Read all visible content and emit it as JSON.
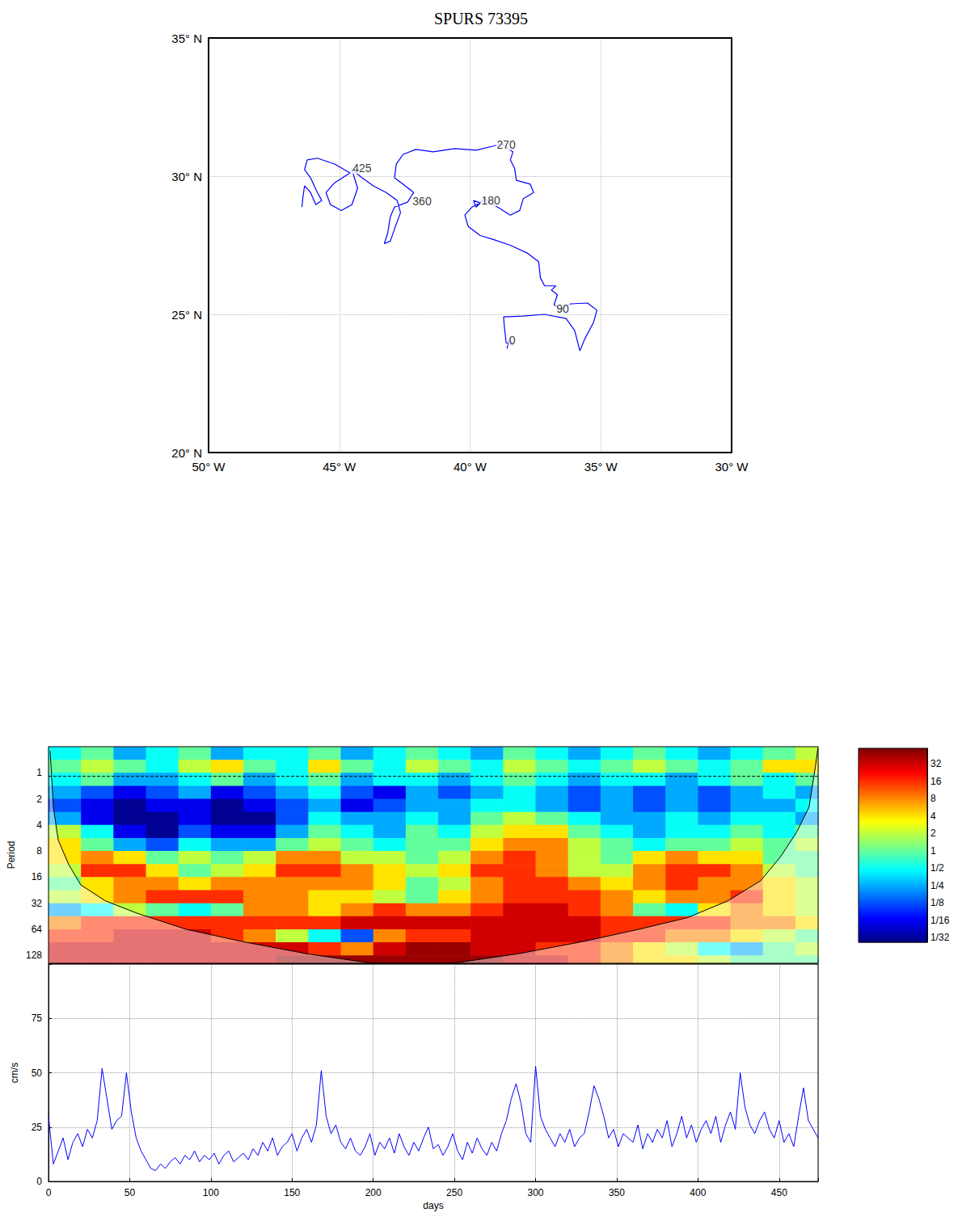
{
  "chart_data": [
    {
      "type": "line",
      "title": "SPURS 73395",
      "xlim": [
        -50,
        -30
      ],
      "xticks": [
        {
          "value": -50,
          "label": "50° W"
        },
        {
          "value": -45,
          "label": "45° W"
        },
        {
          "value": -40,
          "label": "40° W"
        },
        {
          "value": -35,
          "label": "35° W"
        },
        {
          "value": -30,
          "label": "30° W"
        }
      ],
      "ylim": [
        20,
        35
      ],
      "yticks": [
        {
          "value": 20,
          "label": "20° N"
        },
        {
          "value": 25,
          "label": "25° N"
        },
        {
          "value": 30,
          "label": "30° N"
        },
        {
          "value": 35,
          "label": "35° N"
        }
      ],
      "grid": true,
      "color": "#0000ff",
      "x": [
        -38.59,
        -38.49,
        -38.36,
        -38.62,
        -38.69,
        -38.72,
        -37.97,
        -37.15,
        -36.33,
        -36.0,
        -35.8,
        -35.61,
        -35.28,
        -35.15,
        -35.51,
        -36.16,
        -36.52,
        -36.79,
        -36.66,
        -36.89,
        -36.72,
        -37.15,
        -37.31,
        -37.38,
        -37.8,
        -38.46,
        -39.11,
        -39.61,
        -40.07,
        -40.2,
        -39.93,
        -39.61,
        -39.87,
        -39.77,
        -39.44,
        -38.95,
        -38.46,
        -38.1,
        -37.97,
        -37.57,
        -37.7,
        -38.23,
        -38.3,
        -38.46,
        -38.36,
        -38.79,
        -39.11,
        -39.77,
        -40.59,
        -41.41,
        -42.07,
        -42.56,
        -42.82,
        -42.89,
        -42.56,
        -42.16,
        -42.39,
        -42.89,
        -43.05,
        -43.15,
        -43.28,
        -43.05,
        -42.89,
        -42.66,
        -42.79,
        -43.21,
        -43.7,
        -44.13,
        -44.52,
        -44.3,
        -44.52,
        -44.92,
        -45.34,
        -45.51,
        -45.18,
        -44.59,
        -45.18,
        -45.84,
        -46.23,
        -46.33,
        -46.1,
        -45.84,
        -45.67,
        -45.9,
        -46.1,
        -46.33,
        -46.39,
        -46.43
      ],
      "values": [
        23.76,
        24.12,
        23.88,
        23.97,
        24.56,
        24.91,
        24.94,
        25.0,
        24.85,
        24.41,
        23.68,
        24.12,
        24.71,
        25.15,
        25.41,
        25.38,
        25.18,
        25.35,
        25.71,
        25.88,
        26.03,
        26.03,
        26.32,
        26.91,
        27.21,
        27.5,
        27.71,
        27.85,
        28.18,
        28.59,
        28.88,
        29.03,
        29.12,
        28.88,
        29.18,
        28.88,
        28.59,
        28.76,
        29.18,
        29.41,
        29.71,
        29.85,
        30.29,
        30.59,
        30.88,
        31.18,
        31.09,
        30.94,
        31.0,
        30.88,
        30.97,
        30.79,
        30.44,
        29.94,
        29.71,
        29.41,
        29.06,
        28.88,
        28.53,
        27.94,
        27.56,
        27.65,
        28.09,
        28.68,
        29.12,
        29.41,
        29.65,
        29.94,
        30.24,
        29.56,
        28.97,
        28.76,
        28.97,
        29.41,
        29.76,
        30.12,
        30.44,
        30.65,
        30.59,
        30.24,
        29.94,
        29.41,
        29.12,
        28.97,
        29.41,
        29.65,
        29.26,
        28.88
      ],
      "annotations": [
        {
          "text": "0",
          "x": -38.39,
          "y": 24.06
        },
        {
          "text": "90",
          "x": -36.46,
          "y": 25.21
        },
        {
          "text": "180",
          "x": -39.21,
          "y": 29.12
        },
        {
          "text": "270",
          "x": -38.62,
          "y": 31.15
        },
        {
          "text": "360",
          "x": -41.84,
          "y": 29.09
        },
        {
          "text": "425",
          "x": -44.13,
          "y": 30.29
        }
      ]
    },
    {
      "type": "heatmap",
      "ylabel": "Period",
      "xlim": [
        0,
        474
      ],
      "xticks": [
        0,
        50,
        100,
        150,
        200,
        250,
        300,
        350,
        400,
        450
      ],
      "ylim": [
        0.5,
        158
      ],
      "yticks": [
        1,
        2,
        4,
        8,
        16,
        32,
        64,
        128
      ],
      "log": "y",
      "grid": true,
      "tick_labels": "y",
      "x_edges": [
        0,
        20,
        40,
        60,
        80,
        100,
        120,
        140,
        160,
        180,
        200,
        220,
        240,
        260,
        280,
        300,
        320,
        340,
        360,
        380,
        400,
        420,
        440,
        460,
        474
      ],
      "y_edges": [
        0.5,
        0.707,
        1,
        1.414,
        2,
        2.83,
        4,
        5.66,
        8,
        11.3,
        16,
        22.6,
        32,
        45.3,
        64,
        90.5,
        128,
        158
      ],
      "power": [
        [
          0.5,
          1,
          0.25,
          0.5,
          1,
          0.25,
          0.5,
          0.5,
          1,
          0.25,
          0.5,
          1,
          0.5,
          0.25,
          1,
          0.5,
          0.25,
          0.5,
          1,
          0.5,
          0.25,
          0.5,
          1,
          2
        ],
        [
          1,
          2,
          1,
          0.5,
          2,
          4,
          1,
          0.5,
          4,
          1,
          0.5,
          2,
          1,
          0.5,
          2,
          1,
          0.5,
          1,
          2,
          1,
          0.5,
          1,
          4,
          4
        ],
        [
          0.5,
          1,
          0.25,
          0.25,
          0.5,
          1,
          0.25,
          0.5,
          1,
          0.25,
          0.5,
          0.5,
          0.25,
          0.5,
          1,
          0.5,
          0.25,
          0.5,
          0.5,
          0.25,
          0.5,
          1,
          0.5,
          1
        ],
        [
          0.25,
          0.125,
          0.06,
          0.125,
          0.25,
          0.06,
          0.125,
          0.25,
          0.5,
          0.125,
          0.06,
          0.25,
          0.125,
          0.25,
          0.5,
          0.25,
          0.125,
          0.25,
          0.125,
          0.25,
          0.125,
          0.25,
          0.5,
          0.25
        ],
        [
          0.125,
          0.06,
          0.03,
          0.06,
          0.06,
          0.03,
          0.06,
          0.125,
          0.25,
          0.06,
          0.125,
          0.25,
          0.25,
          0.5,
          0.5,
          0.25,
          0.125,
          0.25,
          0.125,
          0.25,
          0.125,
          0.25,
          0.25,
          0.5
        ],
        [
          0.25,
          0.06,
          0.03,
          0.03,
          0.06,
          0.03,
          0.03,
          0.125,
          0.5,
          0.25,
          0.25,
          0.5,
          0.25,
          1,
          2,
          1,
          0.5,
          0.25,
          0.25,
          0.5,
          0.25,
          0.5,
          0.5,
          0.25
        ],
        [
          2,
          0.5,
          0.06,
          0.03,
          0.125,
          0.06,
          0.06,
          0.25,
          1,
          0.5,
          0.25,
          1,
          0.5,
          2,
          4,
          4,
          1,
          0.5,
          0.25,
          0.5,
          0.5,
          1,
          0.5,
          1
        ],
        [
          4,
          1,
          0.25,
          0.125,
          0.5,
          0.25,
          0.25,
          1,
          2,
          1,
          0.5,
          1,
          1,
          4,
          8,
          8,
          2,
          1,
          0.5,
          1,
          1,
          2,
          1,
          2
        ],
        [
          4,
          8,
          4,
          1,
          2,
          1,
          2,
          8,
          8,
          2,
          2,
          1,
          2,
          8,
          16,
          8,
          2,
          1,
          4,
          8,
          4,
          4,
          1,
          1
        ],
        [
          2,
          16,
          16,
          4,
          1,
          2,
          4,
          16,
          16,
          8,
          4,
          2,
          4,
          16,
          16,
          8,
          2,
          2,
          8,
          16,
          16,
          8,
          2,
          1
        ],
        [
          1,
          4,
          8,
          8,
          4,
          8,
          8,
          8,
          8,
          8,
          4,
          1,
          2,
          8,
          16,
          16,
          8,
          4,
          8,
          16,
          8,
          8,
          4,
          2
        ],
        [
          2,
          4,
          8,
          16,
          16,
          16,
          8,
          8,
          4,
          4,
          2,
          1,
          4,
          8,
          16,
          16,
          16,
          8,
          4,
          8,
          8,
          16,
          4,
          2
        ],
        [
          0.25,
          0.5,
          2,
          1,
          0.5,
          1,
          8,
          8,
          4,
          8,
          16,
          8,
          8,
          16,
          32,
          32,
          16,
          8,
          1,
          0.5,
          4,
          8,
          4,
          2
        ],
        [
          8,
          16,
          16,
          16,
          16,
          16,
          16,
          16,
          16,
          32,
          32,
          32,
          32,
          32,
          32,
          32,
          32,
          16,
          16,
          16,
          16,
          8,
          8,
          4
        ],
        [
          16,
          16,
          32,
          32,
          32,
          16,
          8,
          2,
          0.5,
          0.125,
          8,
          16,
          16,
          32,
          32,
          32,
          32,
          16,
          16,
          8,
          8,
          4,
          2,
          1
        ],
        [
          32,
          32,
          32,
          32,
          32,
          32,
          32,
          32,
          16,
          8,
          32,
          48,
          48,
          32,
          32,
          16,
          16,
          8,
          4,
          2,
          0.5,
          0.25,
          1,
          2
        ],
        [
          32,
          32,
          32,
          32,
          32,
          32,
          32,
          48,
          48,
          48,
          48,
          48,
          48,
          48,
          32,
          32,
          16,
          8,
          4,
          4,
          2,
          1,
          1,
          1
        ]
      ],
      "colorbar": {
        "range": [
          0.026,
          59
        ],
        "log": true,
        "ticks": [
          32,
          16,
          8,
          4,
          2,
          1,
          {
            "value": 0.5,
            "label": "1/2"
          },
          {
            "value": 0.25,
            "label": "1/4"
          },
          {
            "value": 0.125,
            "label": "1/8"
          },
          {
            "value": 0.0625,
            "label": "1/16"
          },
          {
            "value": 0.03125,
            "label": "1/32"
          }
        ]
      },
      "coi": {
        "x": [
          1.0,
          3.0,
          6.0,
          12.5,
          19.9,
          34.9,
          54.8,
          84.7,
          119.6,
          159.4,
          199.3,
          249.1,
          289.0,
          328.8,
          363.7,
          393.6,
          418.5,
          438.5,
          450.9,
          460.9,
          468.4,
          472.3,
          473.8
        ],
        "values": [
          0.56,
          2.5,
          6.0,
          11.5,
          19.7,
          30,
          42,
          64,
          89,
          123,
          158,
          158,
          123,
          89,
          64,
          47,
          30,
          17.7,
          9.3,
          4.8,
          2.5,
          0.86,
          0.53
        ]
      },
      "dashed_line_period": 1.1
    },
    {
      "type": "line",
      "xlabel": "days",
      "ylabel": "cm/s",
      "xlim": [
        0,
        474
      ],
      "xticks": [
        0,
        50,
        100,
        150,
        200,
        250,
        300,
        350,
        400,
        450
      ],
      "ylim": [
        0,
        100
      ],
      "yticks": [
        0,
        25,
        50,
        75
      ],
      "grid": true,
      "color": "#0000ff",
      "x": [
        0,
        3,
        6,
        9,
        12,
        15,
        18,
        21,
        24,
        27,
        30,
        33,
        36,
        39,
        42,
        45,
        48,
        51,
        54,
        57,
        60,
        63,
        66,
        69,
        72,
        75,
        78,
        81,
        84,
        87,
        90,
        93,
        96,
        99,
        102,
        105,
        108,
        111,
        114,
        117,
        120,
        123,
        126,
        129,
        132,
        135,
        138,
        141,
        144,
        147,
        150,
        153,
        156,
        159,
        162,
        165,
        168,
        171,
        174,
        177,
        180,
        183,
        186,
        189,
        192,
        195,
        198,
        201,
        204,
        207,
        210,
        213,
        216,
        219,
        222,
        225,
        228,
        231,
        234,
        237,
        240,
        243,
        246,
        249,
        252,
        255,
        258,
        261,
        264,
        267,
        270,
        273,
        276,
        279,
        282,
        285,
        288,
        291,
        294,
        297,
        300,
        303,
        306,
        309,
        312,
        315,
        318,
        321,
        324,
        327,
        330,
        333,
        336,
        339,
        342,
        345,
        348,
        351,
        354,
        357,
        360,
        363,
        366,
        369,
        372,
        375,
        378,
        381,
        384,
        387,
        390,
        393,
        396,
        399,
        402,
        405,
        408,
        411,
        414,
        417,
        420,
        423,
        426,
        429,
        432,
        435,
        438,
        441,
        444,
        447,
        450,
        453,
        456,
        459,
        462,
        465,
        468,
        471,
        474
      ],
      "values": [
        30,
        8,
        14,
        20,
        10,
        18,
        22,
        16,
        24,
        20,
        28,
        52,
        38,
        24,
        28,
        30,
        50,
        32,
        20,
        14,
        10,
        6,
        5,
        8,
        6,
        9,
        11,
        8,
        12,
        10,
        14,
        9,
        12,
        10,
        13,
        8,
        12,
        14,
        9,
        11,
        13,
        10,
        15,
        12,
        18,
        14,
        20,
        12,
        16,
        18,
        22,
        14,
        20,
        24,
        18,
        26,
        51,
        30,
        22,
        26,
        18,
        15,
        20,
        14,
        12,
        16,
        22,
        12,
        18,
        15,
        20,
        13,
        22,
        16,
        12,
        18,
        14,
        20,
        25,
        15,
        17,
        12,
        16,
        22,
        14,
        10,
        18,
        13,
        20,
        15,
        12,
        18,
        14,
        22,
        28,
        38,
        45,
        36,
        22,
        18,
        53,
        30,
        24,
        20,
        16,
        22,
        18,
        24,
        16,
        20,
        22,
        32,
        44,
        38,
        30,
        20,
        24,
        16,
        22,
        20,
        18,
        26,
        15,
        22,
        18,
        24,
        20,
        28,
        16,
        22,
        30,
        20,
        26,
        18,
        24,
        28,
        22,
        30,
        18,
        26,
        32,
        24,
        50,
        34,
        26,
        22,
        28,
        32,
        24,
        20,
        28,
        18,
        22,
        16,
        30,
        43,
        28,
        24,
        20
      ]
    }
  ]
}
